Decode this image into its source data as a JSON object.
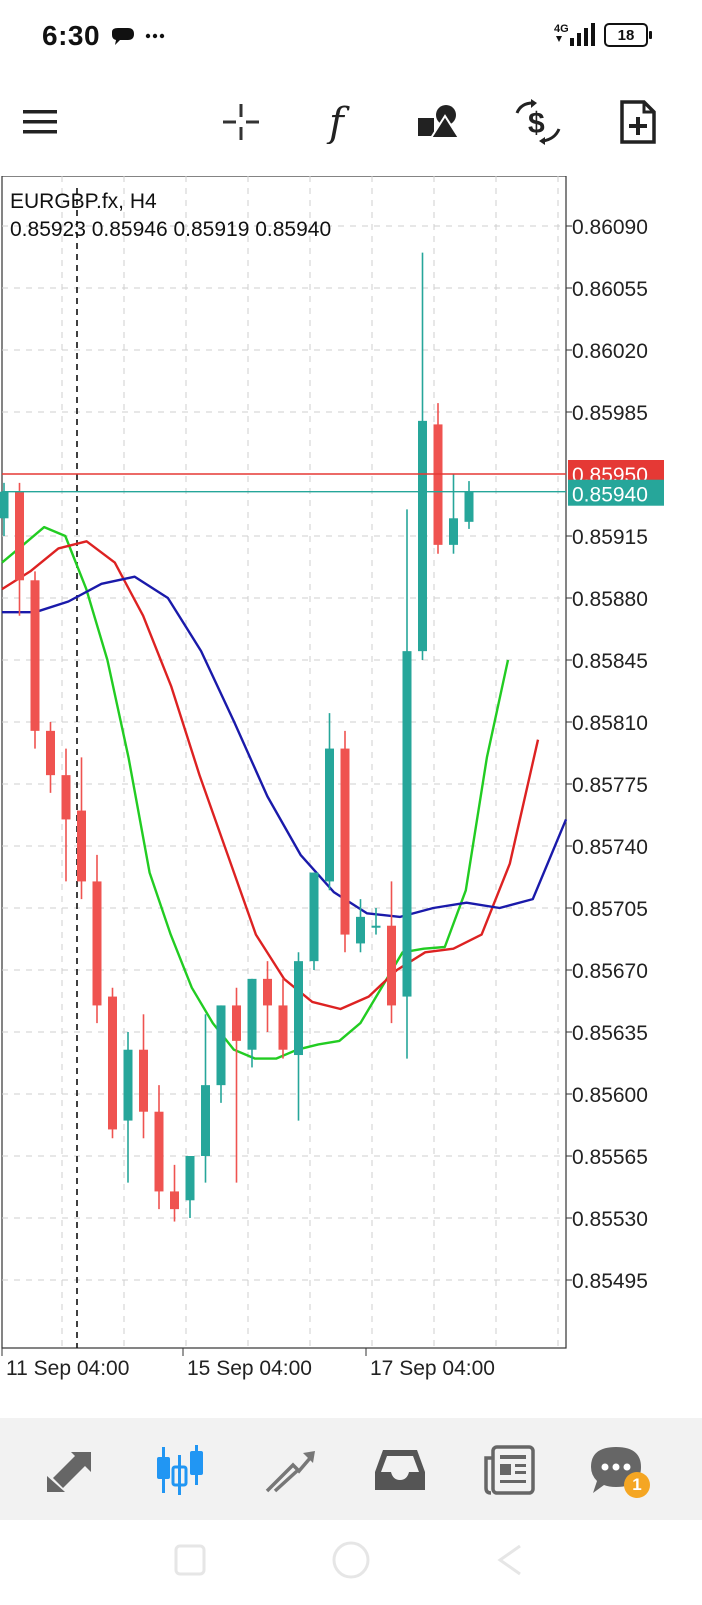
{
  "status_bar": {
    "time": "6:30",
    "network": "4G",
    "battery": "18"
  },
  "toolbar": {
    "icons": [
      "menu-icon",
      "crosshair-icon",
      "indicators-icon",
      "objects-icon",
      "symbols-icon",
      "new-order-icon"
    ]
  },
  "chart": {
    "symbol_timeframe": "EURGBP.fx, H4",
    "ohlc": "0.85923 0.85946 0.85919 0.85940",
    "price_labels": [
      "0.86090",
      "0.86055",
      "0.86020",
      "0.85985",
      "0.85915",
      "0.85880",
      "0.85845",
      "0.85810",
      "0.85775",
      "0.85740",
      "0.85705",
      "0.85670",
      "0.85635",
      "0.85600",
      "0.85565",
      "0.85530",
      "0.85495"
    ],
    "ask_price": "0.85950",
    "bid_price": "0.85940",
    "time_labels": [
      "11 Sep 04:00",
      "15 Sep 04:00",
      "17 Sep 04:00"
    ],
    "colors": {
      "bull": "#26a69a",
      "bear": "#ef5350",
      "ask_line": "#e53935",
      "bid_line": "#26a69a",
      "ma_green": "#22cc22",
      "ma_red": "#dd2222",
      "ma_blue": "#1a1aaa"
    }
  },
  "chart_data": {
    "type": "candlestick",
    "symbol": "EURGBP.fx",
    "timeframe": "H4",
    "ylim": [
      0.8547,
      0.8611
    ],
    "candles": [
      {
        "o": 0.85925,
        "h": 0.85945,
        "l": 0.85915,
        "c": 0.8594
      },
      {
        "o": 0.8594,
        "h": 0.85945,
        "l": 0.8587,
        "c": 0.8589
      },
      {
        "o": 0.8589,
        "h": 0.85895,
        "l": 0.85795,
        "c": 0.85805
      },
      {
        "o": 0.85805,
        "h": 0.8581,
        "l": 0.8577,
        "c": 0.8578
      },
      {
        "o": 0.8578,
        "h": 0.85795,
        "l": 0.8572,
        "c": 0.85755
      },
      {
        "o": 0.8576,
        "h": 0.8579,
        "l": 0.8571,
        "c": 0.8572
      },
      {
        "o": 0.8572,
        "h": 0.85735,
        "l": 0.8564,
        "c": 0.8565
      },
      {
        "o": 0.85655,
        "h": 0.8566,
        "l": 0.85575,
        "c": 0.8558
      },
      {
        "o": 0.85585,
        "h": 0.85635,
        "l": 0.8555,
        "c": 0.85625
      },
      {
        "o": 0.85625,
        "h": 0.85645,
        "l": 0.85575,
        "c": 0.8559
      },
      {
        "o": 0.8559,
        "h": 0.85605,
        "l": 0.85535,
        "c": 0.85545
      },
      {
        "o": 0.85545,
        "h": 0.8556,
        "l": 0.85528,
        "c": 0.85535
      },
      {
        "o": 0.8554,
        "h": 0.85565,
        "l": 0.8553,
        "c": 0.85565
      },
      {
        "o": 0.85565,
        "h": 0.85645,
        "l": 0.8555,
        "c": 0.85605
      },
      {
        "o": 0.85605,
        "h": 0.8565,
        "l": 0.85595,
        "c": 0.8565
      },
      {
        "o": 0.8565,
        "h": 0.8566,
        "l": 0.8555,
        "c": 0.8563
      },
      {
        "o": 0.85625,
        "h": 0.85665,
        "l": 0.85615,
        "c": 0.85665
      },
      {
        "o": 0.85665,
        "h": 0.85675,
        "l": 0.85635,
        "c": 0.8565
      },
      {
        "o": 0.8565,
        "h": 0.85665,
        "l": 0.8562,
        "c": 0.85625
      },
      {
        "o": 0.85622,
        "h": 0.8568,
        "l": 0.85585,
        "c": 0.85675
      },
      {
        "o": 0.85675,
        "h": 0.85725,
        "l": 0.8567,
        "c": 0.85725
      },
      {
        "o": 0.8572,
        "h": 0.85815,
        "l": 0.85715,
        "c": 0.85795
      },
      {
        "o": 0.85795,
        "h": 0.85805,
        "l": 0.8568,
        "c": 0.8569
      },
      {
        "o": 0.85685,
        "h": 0.8571,
        "l": 0.8568,
        "c": 0.857
      },
      {
        "o": 0.85695,
        "h": 0.85705,
        "l": 0.8569,
        "c": 0.85695
      },
      {
        "o": 0.85695,
        "h": 0.8572,
        "l": 0.8564,
        "c": 0.8565
      },
      {
        "o": 0.85655,
        "h": 0.8593,
        "l": 0.8562,
        "c": 0.8585
      },
      {
        "o": 0.8585,
        "h": 0.86075,
        "l": 0.85845,
        "c": 0.8598
      },
      {
        "o": 0.85978,
        "h": 0.8599,
        "l": 0.85905,
        "c": 0.8591
      },
      {
        "o": 0.8591,
        "h": 0.8595,
        "l": 0.85905,
        "c": 0.85925
      },
      {
        "o": 0.85923,
        "h": 0.85946,
        "l": 0.85919,
        "c": 0.8594
      }
    ],
    "moving_averages": [
      {
        "color": "green",
        "values": [
          0.859,
          0.8591,
          0.8592,
          0.85915,
          0.85885,
          0.85845,
          0.8579,
          0.85725,
          0.8569,
          0.8566,
          0.8564,
          0.85625,
          0.8562,
          0.8562,
          0.85625,
          0.85628,
          0.8563,
          0.8564,
          0.8566,
          0.8568,
          0.85682,
          0.85683,
          0.85715,
          0.8579,
          0.85845
        ]
      },
      {
        "color": "red",
        "values": [
          0.85885,
          0.85895,
          0.85908,
          0.85912,
          0.859,
          0.8587,
          0.8583,
          0.8578,
          0.85735,
          0.8569,
          0.85665,
          0.85652,
          0.85648,
          0.85655,
          0.8567,
          0.8568,
          0.85682,
          0.8569,
          0.8573,
          0.858
        ]
      },
      {
        "color": "blue",
        "values": [
          0.85872,
          0.85872,
          0.85878,
          0.85888,
          0.85892,
          0.8588,
          0.8585,
          0.8581,
          0.85768,
          0.85735,
          0.85714,
          0.85702,
          0.857,
          0.85705,
          0.85708,
          0.85705,
          0.8571,
          0.85755
        ]
      }
    ],
    "ask": 0.8595,
    "bid": 0.8594
  },
  "bottom_nav": {
    "items": [
      "quotes-icon",
      "chart-icon",
      "trade-icon",
      "history-icon",
      "news-icon",
      "messages-icon"
    ],
    "active": "chart-icon",
    "messages_badge": "1"
  }
}
